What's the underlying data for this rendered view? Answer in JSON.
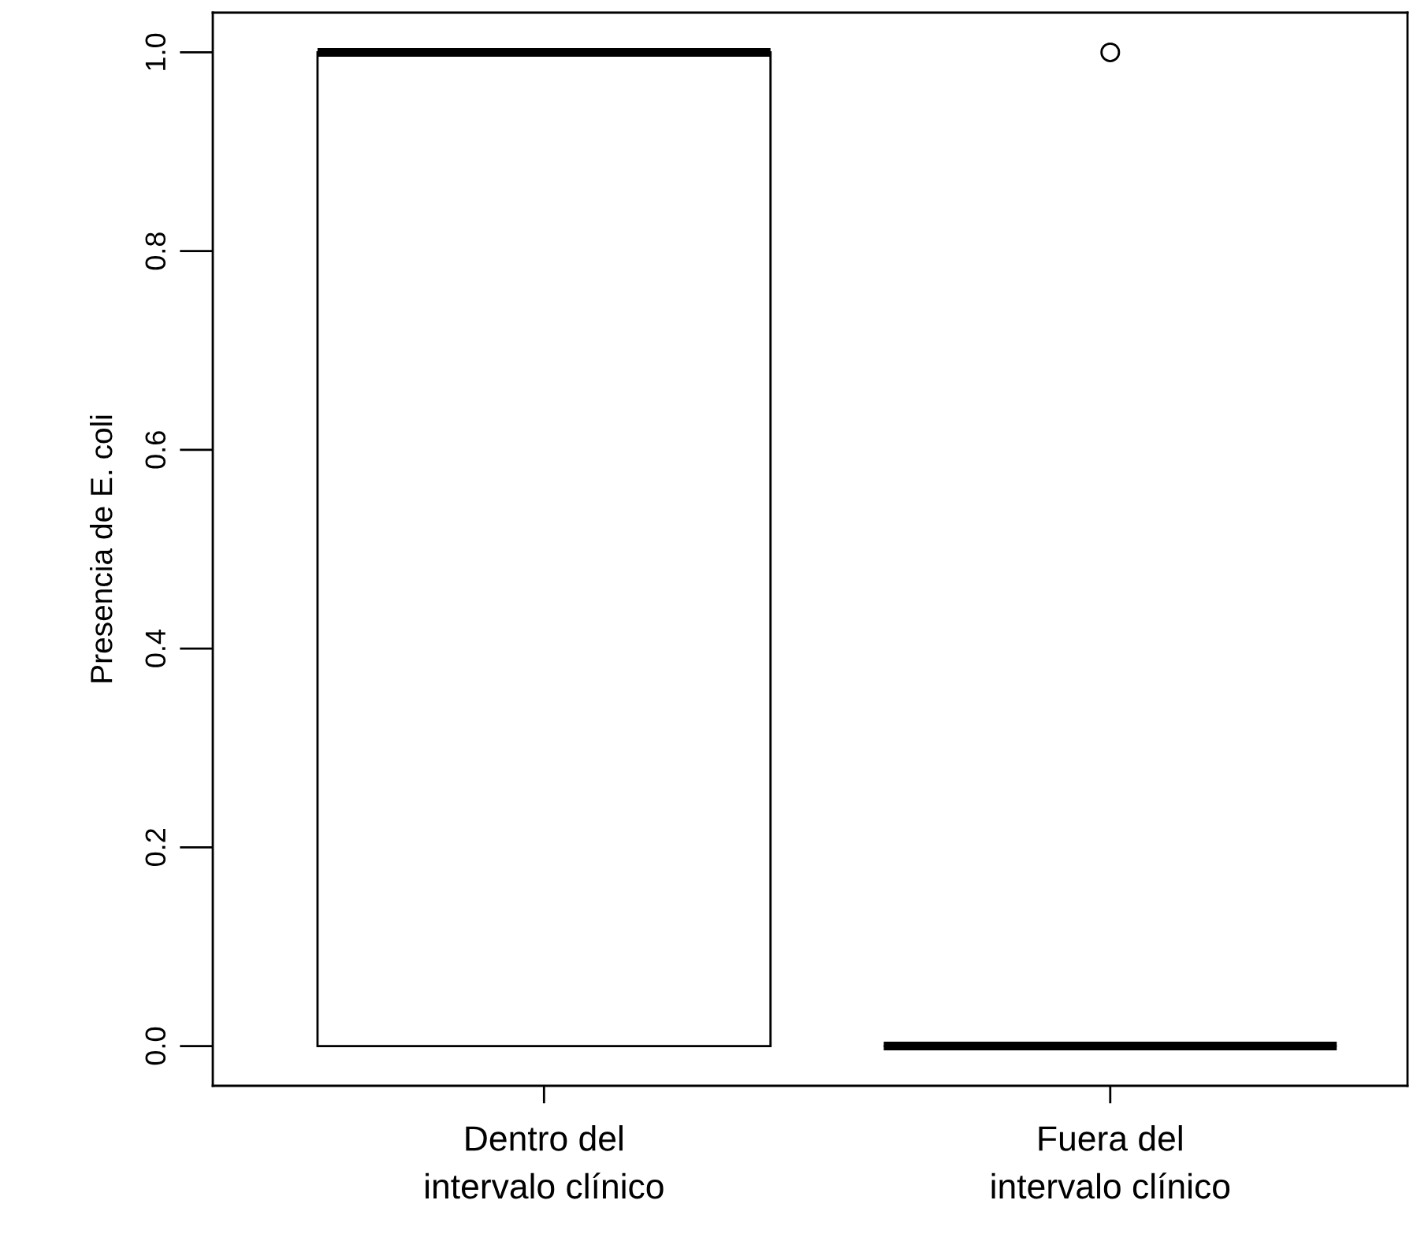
{
  "chart_data": {
    "type": "box",
    "ylabel": "Presencia de E. coli",
    "categories": [
      "Dentro del\nintervalo clínico",
      "Fuera del\nintervalo clínico"
    ],
    "boxes": [
      {
        "low": 0,
        "q1": 0,
        "median": 1,
        "q3": 1,
        "high": 1
      },
      {
        "low": 0,
        "q1": 0,
        "median": 0,
        "q3": 0,
        "high": 0,
        "outliers": [
          1
        ]
      }
    ],
    "ylim": [
      -0.04,
      1.04
    ],
    "yticks": [
      {
        "value": 0,
        "label": "0.0"
      },
      {
        "value": 0.2,
        "label": "0.2"
      },
      {
        "value": 0.4,
        "label": "0.4"
      },
      {
        "value": 0.6,
        "label": "0.6"
      },
      {
        "value": 0.8,
        "label": "0.8"
      },
      {
        "value": 1,
        "label": "1.0"
      }
    ]
  }
}
